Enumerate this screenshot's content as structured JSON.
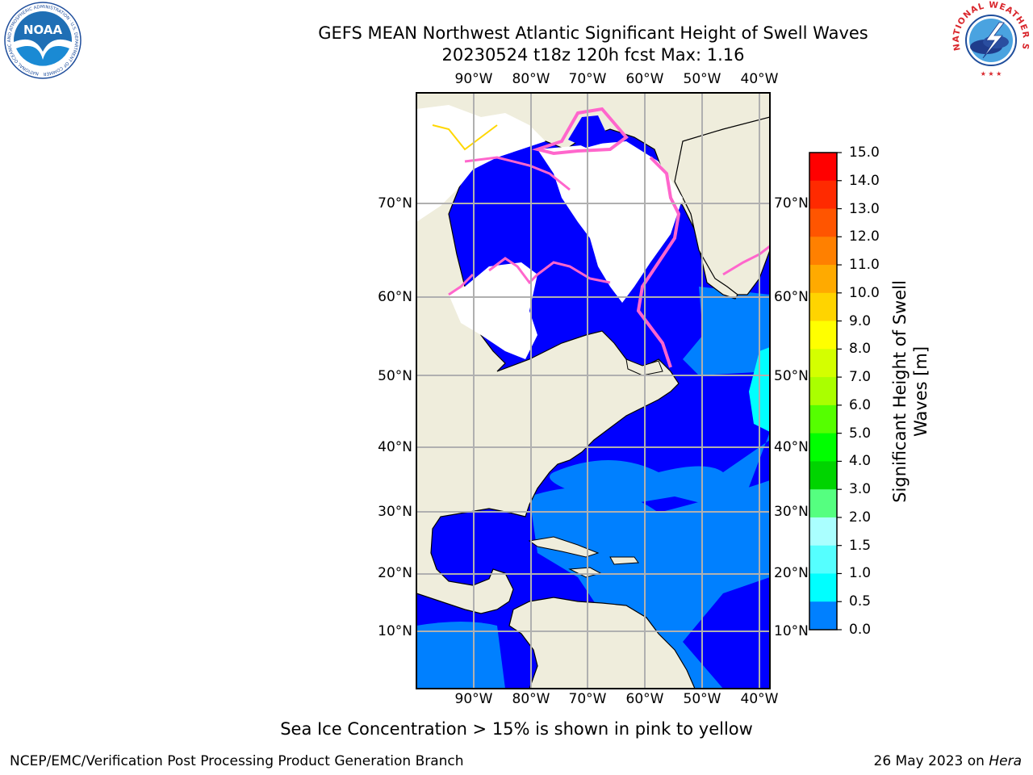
{
  "title": {
    "line1": "GEFS MEAN Northwest Atlantic Significant Height of Swell Waves",
    "line2": "20230524 t18z 120h fcst   Max: 1.16"
  },
  "logos": {
    "left": {
      "text": "NOAA",
      "ring_text": "NATIONAL OCEANIC AND ATMOSPHERIC ADMINISTRATION · U.S. DEPARTMENT OF COMMERCE",
      "color": "#1f6fb5"
    },
    "right": {
      "ring_text": "NATIONAL WEATHER SERVICE",
      "color": "#d9262c"
    }
  },
  "map": {
    "lon_labels": [
      "90°W",
      "80°W",
      "70°W",
      "60°W",
      "50°W",
      "40°W"
    ],
    "lat_labels": [
      "70°N",
      "60°N",
      "50°N",
      "40°N",
      "30°N",
      "20°N",
      "10°N"
    ],
    "colors": {
      "land": "#efeddc",
      "ocean_low": "#0000ff",
      "ocean_mid": "#0080ff",
      "ocean_high": "#00ffff",
      "ice_pink": "#ff66cc",
      "ice_yellow": "#ffd700",
      "grid": "#b0b0b0"
    }
  },
  "colorbar": {
    "title_line1": "Significant Height of Swell",
    "title_line2": "Waves [m]",
    "ticks": [
      "15.0",
      "14.0",
      "13.0",
      "12.0",
      "11.0",
      "10.0",
      "9.0",
      "8.0",
      "7.0",
      "6.0",
      "5.0",
      "4.0",
      "3.0",
      "2.0",
      "1.5",
      "1.0",
      "0.5",
      "0.0"
    ],
    "colors": [
      "#ff0000",
      "#ff2a00",
      "#ff5500",
      "#ff8000",
      "#ffaa00",
      "#ffd400",
      "#ffff00",
      "#d4ff00",
      "#aaff00",
      "#55ff00",
      "#00ff00",
      "#00d400",
      "#55ff80",
      "#aaffff",
      "#55ffff",
      "#00ffff",
      "#0080ff",
      "#0000ff"
    ]
  },
  "caption": "Sea Ice Concentration > 15% is shown in pink to yellow",
  "footer": {
    "left": "NCEP/EMC/Verification Post Processing Product Generation Branch",
    "right_prefix": "26 May 2023 on ",
    "right_machine": "Hera"
  }
}
